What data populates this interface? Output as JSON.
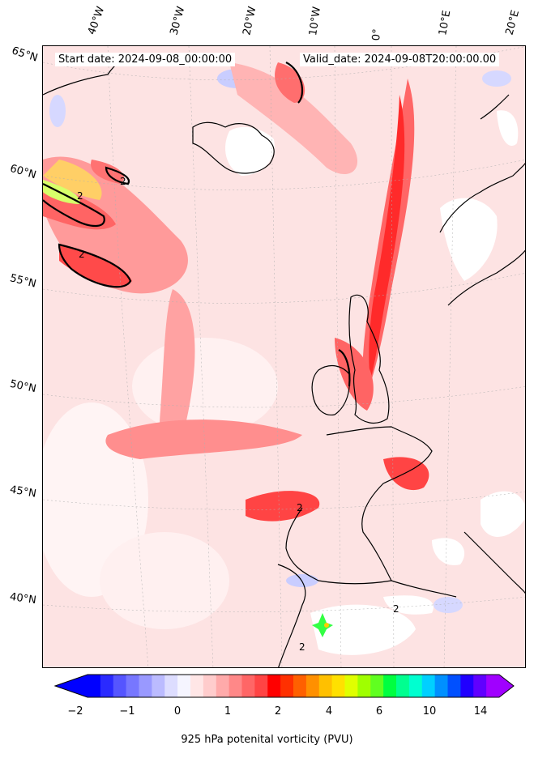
{
  "header": {
    "start_date": "Start date: 2024-09-08_00:00:00",
    "valid_date": "Valid_date: 2024-09-08T20:00:00.00"
  },
  "lon_labels": [
    "40°W",
    "30°W",
    "20°W",
    "10°W",
    "0°",
    "10°E",
    "20°E"
  ],
  "lat_labels": [
    "65°N",
    "60°N",
    "55°N",
    "50°N",
    "45°N",
    "40°N"
  ],
  "contour_labels": [
    "2",
    "2",
    "2",
    "2",
    "2",
    "2"
  ],
  "colorbar": {
    "label": "925 hPa potenital vorticity (PVU)",
    "tick_labels": [
      "−2",
      "−1",
      "0",
      "1",
      "2",
      "4",
      "6",
      "10",
      "14"
    ],
    "colors": [
      "#0000ff",
      "#2a2aff",
      "#5555ff",
      "#7777ff",
      "#9999ff",
      "#bbbbff",
      "#ddddff",
      "#f5f5ff",
      "#ffe6e6",
      "#ffcccc",
      "#ffaaaa",
      "#ff8888",
      "#ff6666",
      "#ff4444",
      "#ff0000",
      "#ff3000",
      "#ff6000",
      "#ff9000",
      "#ffc000",
      "#ffe000",
      "#e0ff00",
      "#a0ff00",
      "#60ff20",
      "#00ff40",
      "#00ff90",
      "#00ffd0",
      "#00d0ff",
      "#0090ff",
      "#0050ff",
      "#2000ff",
      "#6000ff",
      "#a000ff"
    ],
    "extend_min_color": "#0000ff",
    "extend_max_color": "#a000ff"
  }
}
